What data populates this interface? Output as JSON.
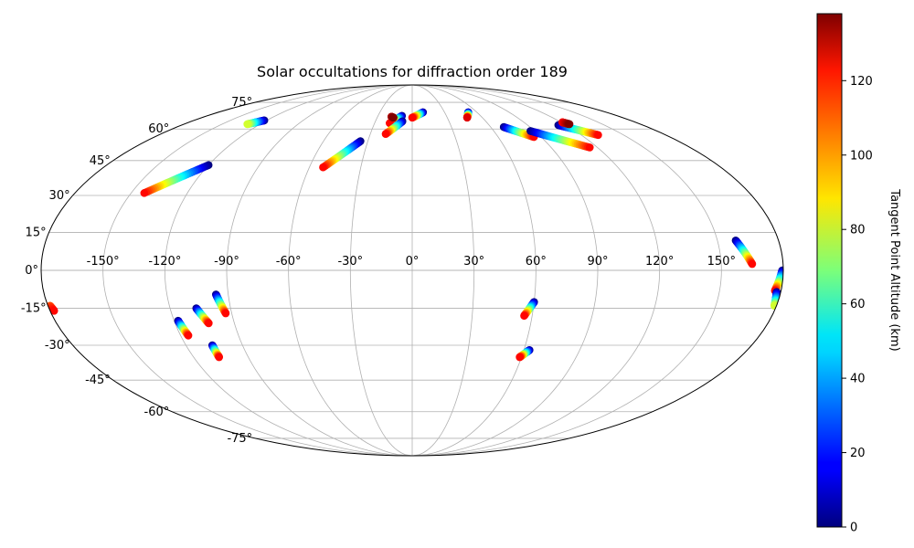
{
  "chart_data": {
    "type": "scatter",
    "projection": "mollweide",
    "title": "Solar occultations for diffraction order 189",
    "grid": true,
    "lon_ticks": [
      -150,
      -120,
      -90,
      -60,
      -30,
      0,
      30,
      60,
      90,
      120,
      150
    ],
    "lon_tick_labels": [
      "-150°",
      "-120°",
      "-90°",
      "-60°",
      "-30°",
      "0°",
      "30°",
      "60°",
      "90°",
      "120°",
      "150°"
    ],
    "lat_ticks": [
      75,
      60,
      45,
      30,
      15,
      0,
      -15,
      -30,
      -45,
      -60,
      -75
    ],
    "lat_tick_labels": [
      "75°",
      "60°",
      "45°",
      "30°",
      "15°",
      "0°",
      "-15°",
      "-30°",
      "-45°",
      "-60°",
      "-75°"
    ],
    "xlabel": "",
    "ylabel": "",
    "colorbar": {
      "label": "Tangent Point Altitude (km)",
      "colormap": "jet",
      "range": [
        0,
        138
      ],
      "ticks": [
        0,
        20,
        40,
        60,
        80,
        100,
        120
      ],
      "tick_labels": [
        "0",
        "20",
        "40",
        "60",
        "80",
        "100",
        "120"
      ]
    },
    "tracks": [
      {
        "lon": [
          -122,
          -130
        ],
        "lat": [
          64.5,
          62.5
        ],
        "alt_start": 0,
        "alt_end": 80
      },
      {
        "lon": [
          -120,
          -143
        ],
        "lat": [
          43,
          31
        ],
        "alt_start": 0,
        "alt_end": 120
      },
      {
        "lon": [
          -35,
          -52
        ],
        "lat": [
          54,
          42
        ],
        "alt_start": 0,
        "alt_end": 120
      },
      {
        "lon": [
          -9,
          -18
        ],
        "lat": [
          67,
          63
        ],
        "alt_start": 0,
        "alt_end": 120
      },
      {
        "lon": [
          -8,
          -19
        ],
        "lat": [
          64,
          57.5
        ],
        "alt_start": 0,
        "alt_end": 120
      },
      {
        "lon": [
          10,
          0
        ],
        "lat": [
          69,
          66
        ],
        "alt_start": 0,
        "alt_end": 120
      },
      {
        "lon": [
          52,
          47
        ],
        "lat": [
          69,
          66
        ],
        "alt_start": 0,
        "alt_end": 125
      },
      {
        "lon": [
          70,
          85
        ],
        "lat": [
          61,
          56
        ],
        "alt_start": 0,
        "alt_end": 120
      },
      {
        "lon": [
          87,
          115
        ],
        "lat": [
          59,
          51
        ],
        "alt_start": 0,
        "alt_end": 120
      },
      {
        "lon": [
          114,
          132
        ],
        "lat": [
          62,
          57
        ],
        "alt_start": 0,
        "alt_end": 120
      },
      {
        "lon": [
          121,
          124
        ],
        "lat": [
          63.5,
          62.5
        ],
        "alt_start": 120,
        "alt_end": 138
      },
      {
        "lon": [
          -18,
          -16
        ],
        "lat": [
          66.5,
          66
        ],
        "alt_start": 130,
        "alt_end": 138
      },
      {
        "lon": [
          159,
          165
        ],
        "lat": [
          11.8,
          2.5
        ],
        "alt_start": 0,
        "alt_end": 120
      },
      {
        "lon": [
          179.5,
          177
        ],
        "lat": [
          0,
          -8
        ],
        "alt_start": 0,
        "alt_end": 120
      },
      {
        "lon": [
          178,
          179
        ],
        "lat": [
          -8.5,
          -14
        ],
        "alt_start": 0,
        "alt_end": 80
      },
      {
        "lon": [
          -179,
          -178
        ],
        "lat": [
          -14,
          -16
        ],
        "alt_start": 110,
        "alt_end": 120
      },
      {
        "lon": [
          -118,
          -116
        ],
        "lat": [
          -20,
          -26
        ],
        "alt_start": 0,
        "alt_end": 120
      },
      {
        "lon": [
          -107,
          -103
        ],
        "lat": [
          -15,
          -21
        ],
        "alt_start": 0,
        "alt_end": 120
      },
      {
        "lon": [
          -96,
          -93
        ],
        "lat": [
          -9.5,
          -17
        ],
        "alt_start": 0,
        "alt_end": 120
      },
      {
        "lon": [
          -106,
          -106
        ],
        "lat": [
          -30,
          -35
        ],
        "alt_start": 0,
        "alt_end": 120
      },
      {
        "lon": [
          60,
          56
        ],
        "lat": [
          -12.5,
          -18
        ],
        "alt_start": 0,
        "alt_end": 120
      },
      {
        "lon": [
          63,
          59
        ],
        "lat": [
          -32,
          -35
        ],
        "alt_start": 0,
        "alt_end": 120
      }
    ]
  }
}
